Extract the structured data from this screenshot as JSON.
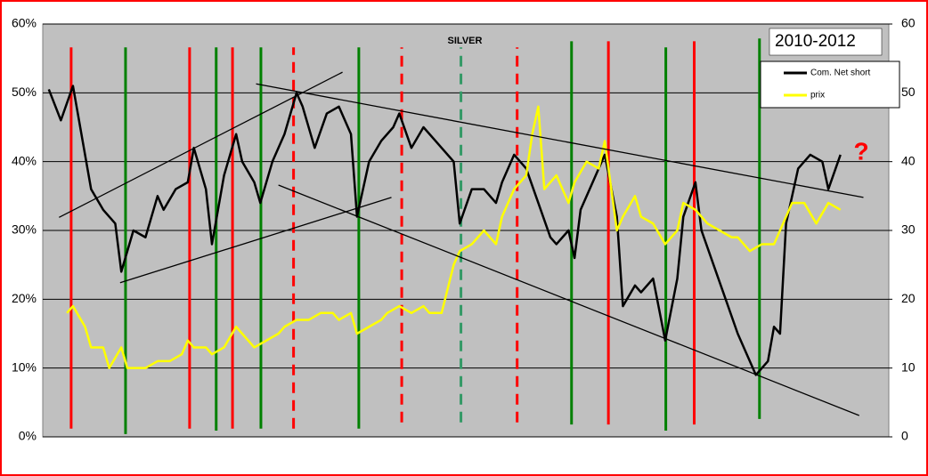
{
  "chart_data": {
    "type": "line",
    "title": "SILVER",
    "annotations": {
      "period": "2010-2012",
      "question": "?"
    },
    "xlim": [
      0,
      140
    ],
    "ylim": [
      0,
      60
    ],
    "yticks": [
      {
        "value": 0,
        "label": "0%"
      },
      {
        "value": 10,
        "label": "10%"
      },
      {
        "value": 20,
        "label": "20%"
      },
      {
        "value": 30,
        "label": "30%"
      },
      {
        "value": 40,
        "label": "40%"
      },
      {
        "value": 50,
        "label": "50%"
      },
      {
        "value": 60,
        "label": "60%"
      }
    ],
    "y2lim": [
      0,
      60
    ],
    "y2ticks": [
      0,
      10,
      20,
      30,
      40,
      50,
      60
    ],
    "grid": true,
    "legend": "top-right",
    "series": [
      {
        "name": "Com. Net short",
        "color": "#000000",
        "x": [
          1,
          3,
          5,
          6,
          8,
          10,
          12,
          13,
          15,
          17,
          19,
          20,
          22,
          24,
          25,
          27,
          28,
          30,
          32,
          33,
          35,
          36,
          38,
          40,
          42,
          43,
          45,
          47,
          49,
          51,
          52,
          54,
          56,
          58,
          59,
          61,
          63,
          65,
          66,
          68,
          69,
          71,
          73,
          75,
          76,
          78,
          80,
          82,
          84,
          85,
          87,
          88,
          89,
          91,
          93,
          95,
          96,
          98,
          99,
          101,
          103,
          105,
          106,
          108,
          109,
          111,
          113,
          115,
          116,
          118,
          120,
          121,
          122,
          123,
          125,
          127,
          129,
          130,
          132
        ],
        "values": [
          50.5,
          46,
          51,
          46,
          36,
          33,
          31,
          24,
          30,
          29,
          35,
          33,
          36,
          37,
          42,
          36,
          28,
          38,
          44,
          40,
          37,
          34,
          40,
          44,
          50,
          48,
          42,
          47,
          48,
          44,
          32,
          40,
          43,
          45,
          47,
          42,
          45,
          43,
          42,
          40,
          31,
          36,
          36,
          34,
          37,
          41,
          39,
          34,
          29,
          28,
          30,
          26,
          33,
          37,
          41,
          32,
          19,
          22,
          21,
          23,
          14,
          23,
          32,
          37,
          30,
          25,
          20,
          15,
          13,
          9,
          11,
          16,
          15,
          31,
          39,
          41,
          40,
          36,
          41
        ]
      },
      {
        "name": "prix",
        "color": "#ffff00",
        "axis": "y2",
        "x": [
          4,
          5,
          7,
          8,
          10,
          11,
          13,
          14,
          15,
          17,
          19,
          21,
          23,
          24,
          25,
          27,
          28,
          30,
          32,
          33,
          35,
          37,
          39,
          40,
          42,
          44,
          46,
          48,
          49,
          51,
          52,
          54,
          56,
          57,
          59,
          61,
          63,
          64,
          66,
          68,
          69,
          71,
          73,
          75,
          76,
          78,
          80,
          81,
          82,
          83,
          85,
          87,
          88,
          90,
          92,
          93,
          95,
          96,
          98,
          99,
          101,
          103,
          105,
          106,
          108,
          110,
          112,
          114,
          115,
          117,
          119,
          121,
          122,
          124,
          126,
          128,
          130,
          132
        ],
        "values": [
          18,
          19,
          16,
          13,
          13,
          10,
          13,
          10,
          10,
          10,
          11,
          11,
          12,
          14,
          13,
          13,
          12,
          13,
          16,
          15,
          13,
          14,
          15,
          16,
          17,
          17,
          18,
          18,
          17,
          18,
          15,
          16,
          17,
          18,
          19,
          18,
          19,
          18,
          18,
          25,
          27,
          28,
          30,
          28,
          32,
          36,
          38,
          44,
          48,
          36,
          38,
          34,
          37,
          40,
          39,
          43,
          30,
          32,
          35,
          32,
          31,
          28,
          30,
          34,
          33,
          31,
          30,
          29,
          29,
          27,
          28,
          28,
          30,
          34,
          34,
          31,
          34,
          33
        ]
      }
    ],
    "vlines": [
      {
        "x": 4.7,
        "y1": 1.2,
        "y2": 56.6,
        "color": "#ff0000",
        "dashed": false
      },
      {
        "x": 13.7,
        "y1": 0.4,
        "y2": 56.6,
        "color": "#008000",
        "dashed": false
      },
      {
        "x": 24.3,
        "y1": 1.2,
        "y2": 56.6,
        "color": "#ff0000",
        "dashed": false
      },
      {
        "x": 28.7,
        "y1": 0.9,
        "y2": 56.6,
        "color": "#008000",
        "dashed": false
      },
      {
        "x": 31.4,
        "y1": 1.2,
        "y2": 56.6,
        "color": "#ff0000",
        "dashed": false
      },
      {
        "x": 36.1,
        "y1": 1.2,
        "y2": 56.6,
        "color": "#008000",
        "dashed": false
      },
      {
        "x": 41.5,
        "y1": 1.2,
        "y2": 56.6,
        "color": "#ff0000",
        "dashed": true
      },
      {
        "x": 52.3,
        "y1": 1.2,
        "y2": 56.6,
        "color": "#008000",
        "dashed": false
      },
      {
        "x": 59.4,
        "y1": 2.1,
        "y2": 56.6,
        "color": "#ff0000",
        "dashed": true
      },
      {
        "x": 69.2,
        "y1": 2.1,
        "y2": 56.6,
        "color": "#339966",
        "dashed": true
      },
      {
        "x": 78.5,
        "y1": 2.1,
        "y2": 56.6,
        "color": "#ff0000",
        "dashed": true
      },
      {
        "x": 87.5,
        "y1": 1.8,
        "y2": 57.5,
        "color": "#008000",
        "dashed": false
      },
      {
        "x": 93.6,
        "y1": 1.8,
        "y2": 57.5,
        "color": "#ff0000",
        "dashed": false
      },
      {
        "x": 103.1,
        "y1": 0.9,
        "y2": 56.6,
        "color": "#008000",
        "dashed": false
      },
      {
        "x": 107.8,
        "y1": 1.8,
        "y2": 57.5,
        "color": "#ff0000",
        "dashed": false
      },
      {
        "x": 118.6,
        "y1": 2.6,
        "y2": 57.9,
        "color": "#008000",
        "dashed": false
      }
    ],
    "trendlines": [
      {
        "points": [
          [
            2.7,
            31.9
          ],
          [
            49.6,
            53.0
          ]
        ]
      },
      {
        "points": [
          [
            12.8,
            22.4
          ],
          [
            57.7,
            34.8
          ]
        ]
      },
      {
        "points": [
          [
            35.3,
            51.3
          ],
          [
            135.8,
            34.8
          ]
        ]
      },
      {
        "points": [
          [
            39.0,
            36.6
          ],
          [
            135.1,
            3.1
          ]
        ]
      }
    ]
  }
}
